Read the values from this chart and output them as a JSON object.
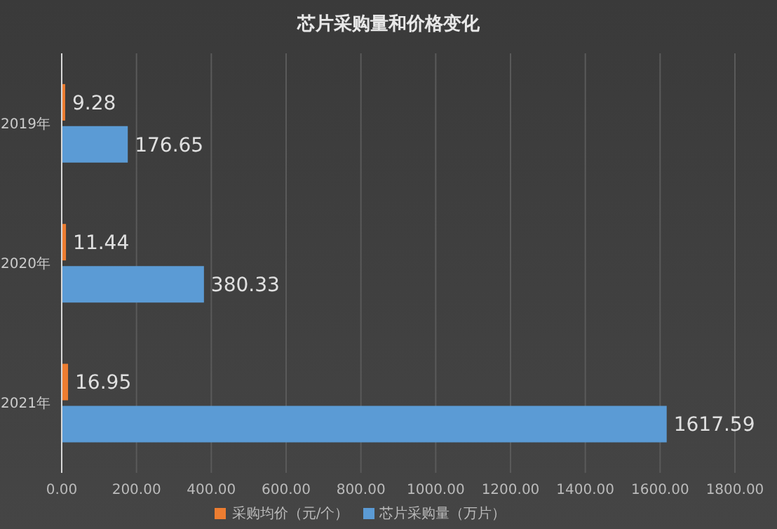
{
  "chart_data": {
    "type": "bar",
    "orientation": "horizontal",
    "title": "芯片采购量和价格变化",
    "categories": [
      "2019年",
      "2020年",
      "2021年"
    ],
    "series": [
      {
        "name": "采购均价（元/个）",
        "color": "#ed7d31",
        "values": [
          9.28,
          11.44,
          16.95
        ]
      },
      {
        "name": "芯片采购量（万片）",
        "color": "#5b9bd5",
        "values": [
          176.65,
          380.33,
          1617.59
        ]
      }
    ],
    "xlim": [
      0,
      1800
    ],
    "xticks": [
      {
        "value": 0,
        "label": "0.00"
      },
      {
        "value": 200,
        "label": "200.00"
      },
      {
        "value": 400,
        "label": "400.00"
      },
      {
        "value": 600,
        "label": "600.00"
      },
      {
        "value": 800,
        "label": "800.00"
      },
      {
        "value": 1000,
        "label": "1000.00"
      },
      {
        "value": 1200,
        "label": "1200.00"
      },
      {
        "value": 1400,
        "label": "1400.00"
      },
      {
        "value": 1600,
        "label": "1600.00"
      },
      {
        "value": 1800,
        "label": "1800.00"
      }
    ],
    "grid": "x",
    "legend": "bottom",
    "data_labels": true
  }
}
